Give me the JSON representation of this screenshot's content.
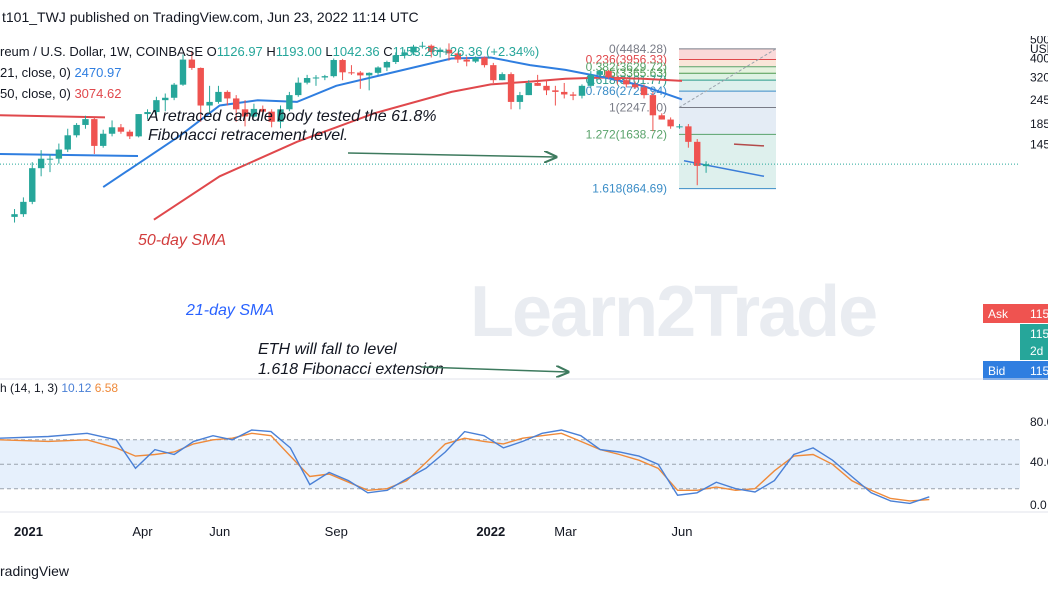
{
  "header": {
    "published": "t101_TWJ published on TradingView.com, Jun 23, 2022 11:14 UTC"
  },
  "footer": {
    "brand": "radingView"
  },
  "watermark": "Learn2Trade",
  "chart_data": {
    "type": "candlestick",
    "legend": {
      "symbol": "reum / U.S. Dollar, 1W, COINBASE",
      "ohlc": [
        {
          "key": "O",
          "value": "1126.97"
        },
        {
          "key": "H",
          "value": "1193.00"
        },
        {
          "key": "L",
          "value": "1042.36"
        },
        {
          "key": "C",
          "value": "1153.26"
        }
      ],
      "change": "+26.36 (+2.34%)",
      "ma_lines": [
        {
          "label": "21, close, 0)",
          "value": "2470.97",
          "color": "#2f7ee0"
        },
        {
          "label": "50, close, 0)",
          "value": "3074.62",
          "color": "#e0484c"
        }
      ]
    },
    "price_scale": {
      "currency": "USD",
      "ticks": [
        {
          "label": "500",
          "value": 5000
        },
        {
          "label": "400",
          "value": 4000
        },
        {
          "label": "320",
          "value": 3200
        },
        {
          "label": "245",
          "value": 2450
        },
        {
          "label": "185",
          "value": 1850
        },
        {
          "label": "145",
          "value": 1450
        }
      ],
      "ask": {
        "label": "Ask",
        "value": "115"
      },
      "current": {
        "value": "115",
        "sub": "2d"
      },
      "bid": {
        "label": "Bid",
        "value": "115"
      }
    },
    "time_axis": [
      "2021",
      "Apr",
      "Jun",
      "Sep",
      "2022",
      "Mar",
      "Jun"
    ],
    "time_axis_dates": [
      "2021-01-01",
      "2021-04-01",
      "2021-06-01",
      "2021-09-01",
      "2022-01-01",
      "2022-03-01",
      "2022-06-01"
    ],
    "candles": [
      [
        "2020-12-21",
        620,
        680,
        580,
        640
      ],
      [
        "2020-12-28",
        640,
        780,
        620,
        740
      ],
      [
        "2021-01-04",
        740,
        1180,
        720,
        1100
      ],
      [
        "2021-01-11",
        1100,
        1360,
        1000,
        1230
      ],
      [
        "2021-01-18",
        1230,
        1300,
        1050,
        1230
      ],
      [
        "2021-01-25",
        1230,
        1470,
        1160,
        1370
      ],
      [
        "2021-02-01",
        1370,
        1750,
        1330,
        1620
      ],
      [
        "2021-02-08",
        1620,
        1870,
        1580,
        1830
      ],
      [
        "2021-02-15",
        1830,
        2040,
        1750,
        1960
      ],
      [
        "2021-02-22",
        1960,
        2000,
        1300,
        1430
      ],
      [
        "2021-03-01",
        1430,
        1730,
        1400,
        1650
      ],
      [
        "2021-03-08",
        1650,
        1930,
        1600,
        1780
      ],
      [
        "2021-03-15",
        1780,
        1850,
        1650,
        1690
      ],
      [
        "2021-03-22",
        1690,
        1730,
        1550,
        1600
      ],
      [
        "2021-03-29",
        1600,
        2080,
        1580,
        2080
      ],
      [
        "2021-04-05",
        2080,
        2200,
        1950,
        2130
      ],
      [
        "2021-04-12",
        2130,
        2550,
        2040,
        2450
      ],
      [
        "2021-04-19",
        2450,
        2650,
        2150,
        2520
      ],
      [
        "2021-04-26",
        2520,
        3000,
        2450,
        2940
      ],
      [
        "2021-05-03",
        2940,
        4200,
        2900,
        3950
      ],
      [
        "2021-05-10",
        3950,
        4380,
        3500,
        3580
      ],
      [
        "2021-05-17",
        3580,
        3600,
        1900,
        2300
      ],
      [
        "2021-05-24",
        2300,
        2900,
        2100,
        2400
      ],
      [
        "2021-05-31",
        2400,
        2900,
        2350,
        2700
      ],
      [
        "2021-06-07",
        2700,
        2750,
        2300,
        2500
      ],
      [
        "2021-06-14",
        2500,
        2600,
        1900,
        2200
      ],
      [
        "2021-06-21",
        2200,
        2450,
        1800,
        2020
      ],
      [
        "2021-06-28",
        2020,
        2350,
        2000,
        2210
      ],
      [
        "2021-07-05",
        2210,
        2300,
        2050,
        2140
      ],
      [
        "2021-07-12",
        2140,
        2200,
        1780,
        1900
      ],
      [
        "2021-07-19",
        1900,
        2300,
        1760,
        2200
      ],
      [
        "2021-07-26",
        2200,
        2700,
        2150,
        2600
      ],
      [
        "2021-08-02",
        2600,
        3200,
        2550,
        3010
      ],
      [
        "2021-08-09",
        3010,
        3300,
        2950,
        3180
      ],
      [
        "2021-08-16",
        3180,
        3290,
        2900,
        3200
      ],
      [
        "2021-08-23",
        3200,
        3300,
        3100,
        3250
      ],
      [
        "2021-08-30",
        3250,
        4000,
        3200,
        3930
      ],
      [
        "2021-09-06",
        3930,
        3980,
        3100,
        3400
      ],
      [
        "2021-09-13",
        3400,
        3700,
        3300,
        3390
      ],
      [
        "2021-09-20",
        3390,
        3450,
        2800,
        3280
      ],
      [
        "2021-09-27",
        3280,
        3400,
        2750,
        3380
      ],
      [
        "2021-10-04",
        3380,
        3650,
        3300,
        3600
      ],
      [
        "2021-10-11",
        3600,
        3900,
        3450,
        3840
      ],
      [
        "2021-10-18",
        3840,
        4300,
        3750,
        4150
      ],
      [
        "2021-10-25",
        4150,
        4450,
        4000,
        4300
      ],
      [
        "2021-11-01",
        4300,
        4700,
        4150,
        4600
      ],
      [
        "2021-11-08",
        4600,
        4870,
        4500,
        4650
      ],
      [
        "2021-11-15",
        4650,
        4720,
        4050,
        4320
      ],
      [
        "2021-11-22",
        4320,
        4550,
        4050,
        4440
      ],
      [
        "2021-11-29",
        4440,
        4780,
        3900,
        4250
      ],
      [
        "2021-12-06",
        4250,
        4300,
        3800,
        3950
      ],
      [
        "2021-12-13",
        3950,
        4100,
        3650,
        3860
      ],
      [
        "2021-12-20",
        3860,
        4100,
        3800,
        4050
      ],
      [
        "2021-12-27",
        4050,
        4100,
        3600,
        3700
      ],
      [
        "2022-01-03",
        3700,
        3800,
        3000,
        3100
      ],
      [
        "2022-01-10",
        3100,
        3400,
        3100,
        3330
      ],
      [
        "2022-01-17",
        3330,
        3400,
        2200,
        2400
      ],
      [
        "2022-01-24",
        2400,
        2700,
        2200,
        2600
      ],
      [
        "2022-01-31",
        2600,
        3100,
        2600,
        3000
      ],
      [
        "2022-02-07",
        3000,
        3300,
        2900,
        2900
      ],
      [
        "2022-02-14",
        2900,
        3100,
        2600,
        2750
      ],
      [
        "2022-02-21",
        2750,
        2900,
        2300,
        2700
      ],
      [
        "2022-02-28",
        2700,
        3000,
        2500,
        2620
      ],
      [
        "2022-03-07",
        2620,
        2700,
        2450,
        2580
      ],
      [
        "2022-03-14",
        2580,
        2950,
        2500,
        2900
      ],
      [
        "2022-03-21",
        2900,
        3450,
        2850,
        3300
      ],
      [
        "2022-03-28",
        3300,
        3500,
        3200,
        3450
      ],
      [
        "2022-04-04",
        3450,
        3500,
        3150,
        3200
      ],
      [
        "2022-04-11",
        3200,
        3250,
        2950,
        3100
      ],
      [
        "2022-04-18",
        3100,
        3200,
        2850,
        2950
      ],
      [
        "2022-04-25",
        2950,
        3050,
        2800,
        2850
      ],
      [
        "2022-05-02",
        2850,
        2950,
        2500,
        2600
      ],
      [
        "2022-05-09",
        2600,
        2700,
        1700,
        2050
      ],
      [
        "2022-05-16",
        2050,
        2100,
        1950,
        1950
      ],
      [
        "2022-05-23",
        1950,
        2000,
        1750,
        1800
      ],
      [
        "2022-05-30",
        1800,
        1850,
        1750,
        1800
      ],
      [
        "2022-06-06",
        1800,
        1850,
        1400,
        1500
      ],
      [
        "2022-06-13",
        1500,
        1550,
        900,
        1130
      ],
      [
        "2022-06-20",
        1127,
        1193,
        1042,
        1153
      ]
    ],
    "sma21": [
      [
        "2021-03-01",
        880
      ],
      [
        "2021-05-01",
        1620
      ],
      [
        "2021-06-01",
        2300
      ],
      [
        "2021-07-01",
        2450
      ],
      [
        "2021-08-01",
        2400
      ],
      [
        "2021-09-01",
        2900
      ],
      [
        "2021-11-01",
        3600
      ],
      [
        "2021-12-01",
        4000
      ],
      [
        "2022-01-01",
        4050
      ],
      [
        "2022-02-01",
        3700
      ],
      [
        "2022-03-01",
        3500
      ],
      [
        "2022-04-01",
        3200
      ],
      [
        "2022-05-01",
        2900
      ],
      [
        "2022-06-01",
        2470.97
      ]
    ],
    "sma50": [
      [
        "2021-04-10",
        600
      ],
      [
        "2021-06-01",
        1000
      ],
      [
        "2021-08-01",
        1500
      ],
      [
        "2021-10-01",
        2100
      ],
      [
        "2021-12-01",
        2700
      ],
      [
        "2022-01-01",
        2950
      ],
      [
        "2022-02-01",
        3050
      ],
      [
        "2022-03-01",
        3150
      ],
      [
        "2022-04-01",
        3200
      ],
      [
        "2022-05-01",
        3150
      ],
      [
        "2022-06-01",
        3074.62
      ]
    ],
    "fib": {
      "levels": [
        {
          "text": "0(4484.28)",
          "price": 4484.28,
          "color": "#787b86"
        },
        {
          "text": "0.236(3956.33)",
          "price": 3956.33,
          "color": "#e0484c"
        },
        {
          "text": "0.382(3629.72)",
          "price": 3629.72,
          "color": "#5aa36b"
        },
        {
          "text": "0.5(3365.63)",
          "price": 3365.63,
          "color": "#4e9a50"
        },
        {
          "text": "0.618(3101.77)",
          "price": 3101.77,
          "color": "#2a9a8a"
        },
        {
          "text": "0.786(2725.94)",
          "price": 2725.94,
          "color": "#3b8dc7"
        },
        {
          "text": "1(2247.20)",
          "price": 2247.2,
          "color": "#787b86"
        },
        {
          "text": "1.272(1638.72)",
          "price": 1638.72,
          "color": "#5aa36b"
        },
        {
          "text": "1.618(864.69)",
          "price": 864.69,
          "color": "#3b8dc7"
        }
      ]
    },
    "annotations": {
      "retrace_line1": "A retraced candle body tested the  61.8%",
      "retrace_line2": "Fibonacci retracement level.",
      "sma50_label": "50-day SMA",
      "sma21_label": "21-day SMA",
      "eth_line1": "ETH will fall to level",
      "eth_line2": "1.618 Fibonacci extension"
    },
    "stoch": {
      "label": "h (14, 1, 3)",
      "k_value": "10.12",
      "d_value": "6.58",
      "ticks": [
        "80.0",
        "40.0",
        "0.0"
      ],
      "k": [
        [
          0,
          82
        ],
        [
          5,
          84
        ],
        [
          9,
          88
        ],
        [
          12,
          80
        ],
        [
          14,
          45
        ],
        [
          16,
          68
        ],
        [
          18,
          62
        ],
        [
          20,
          78
        ],
        [
          22,
          85
        ],
        [
          24,
          80
        ],
        [
          26,
          92
        ],
        [
          28,
          90
        ],
        [
          30,
          70
        ],
        [
          32,
          25
        ],
        [
          34,
          40
        ],
        [
          36,
          30
        ],
        [
          38,
          15
        ],
        [
          40,
          18
        ],
        [
          42,
          32
        ],
        [
          44,
          45
        ],
        [
          46,
          65
        ],
        [
          48,
          90
        ],
        [
          50,
          85
        ],
        [
          52,
          70
        ],
        [
          54,
          78
        ],
        [
          56,
          88
        ],
        [
          58,
          92
        ],
        [
          60,
          85
        ],
        [
          62,
          68
        ],
        [
          64,
          65
        ],
        [
          66,
          60
        ],
        [
          68,
          50
        ],
        [
          70,
          12
        ],
        [
          72,
          15
        ],
        [
          74,
          28
        ],
        [
          76,
          20
        ],
        [
          78,
          16
        ],
        [
          80,
          30
        ],
        [
          82,
          62
        ],
        [
          84,
          70
        ],
        [
          86,
          55
        ],
        [
          88,
          35
        ],
        [
          90,
          15
        ],
        [
          92,
          5
        ],
        [
          94,
          2
        ],
        [
          96,
          10.12
        ]
      ],
      "d": [
        [
          0,
          80
        ],
        [
          5,
          78
        ],
        [
          9,
          80
        ],
        [
          12,
          70
        ],
        [
          14,
          60
        ],
        [
          16,
          62
        ],
        [
          18,
          65
        ],
        [
          20,
          75
        ],
        [
          22,
          80
        ],
        [
          24,
          82
        ],
        [
          26,
          88
        ],
        [
          28,
          85
        ],
        [
          30,
          60
        ],
        [
          32,
          35
        ],
        [
          34,
          38
        ],
        [
          36,
          28
        ],
        [
          38,
          18
        ],
        [
          40,
          20
        ],
        [
          42,
          30
        ],
        [
          44,
          52
        ],
        [
          46,
          75
        ],
        [
          48,
          82
        ],
        [
          50,
          78
        ],
        [
          52,
          75
        ],
        [
          54,
          82
        ],
        [
          56,
          85
        ],
        [
          58,
          88
        ],
        [
          60,
          78
        ],
        [
          62,
          68
        ],
        [
          64,
          62
        ],
        [
          66,
          55
        ],
        [
          68,
          45
        ],
        [
          70,
          18
        ],
        [
          72,
          18
        ],
        [
          74,
          22
        ],
        [
          76,
          18
        ],
        [
          78,
          20
        ],
        [
          80,
          42
        ],
        [
          82,
          60
        ],
        [
          84,
          62
        ],
        [
          86,
          50
        ],
        [
          88,
          30
        ],
        [
          90,
          18
        ],
        [
          92,
          8
        ],
        [
          94,
          5
        ],
        [
          96,
          6.58
        ]
      ],
      "overbought": 80,
      "oversold": 20
    }
  },
  "colors": {
    "up": "#26a69a",
    "down": "#ef5350",
    "sma21": "#2f7ee0",
    "sma50": "#e0484c",
    "annotation_dark": "#131722",
    "annotation_red": "#d23c3c",
    "annotation_blue": "#2962ff",
    "arrow": "#3d7a5e",
    "ask": "#ef5350",
    "current": "#26a69a",
    "bid": "#2f7ee0",
    "stoch_k": "#4a80d6",
    "stoch_d": "#ef8a3a"
  }
}
